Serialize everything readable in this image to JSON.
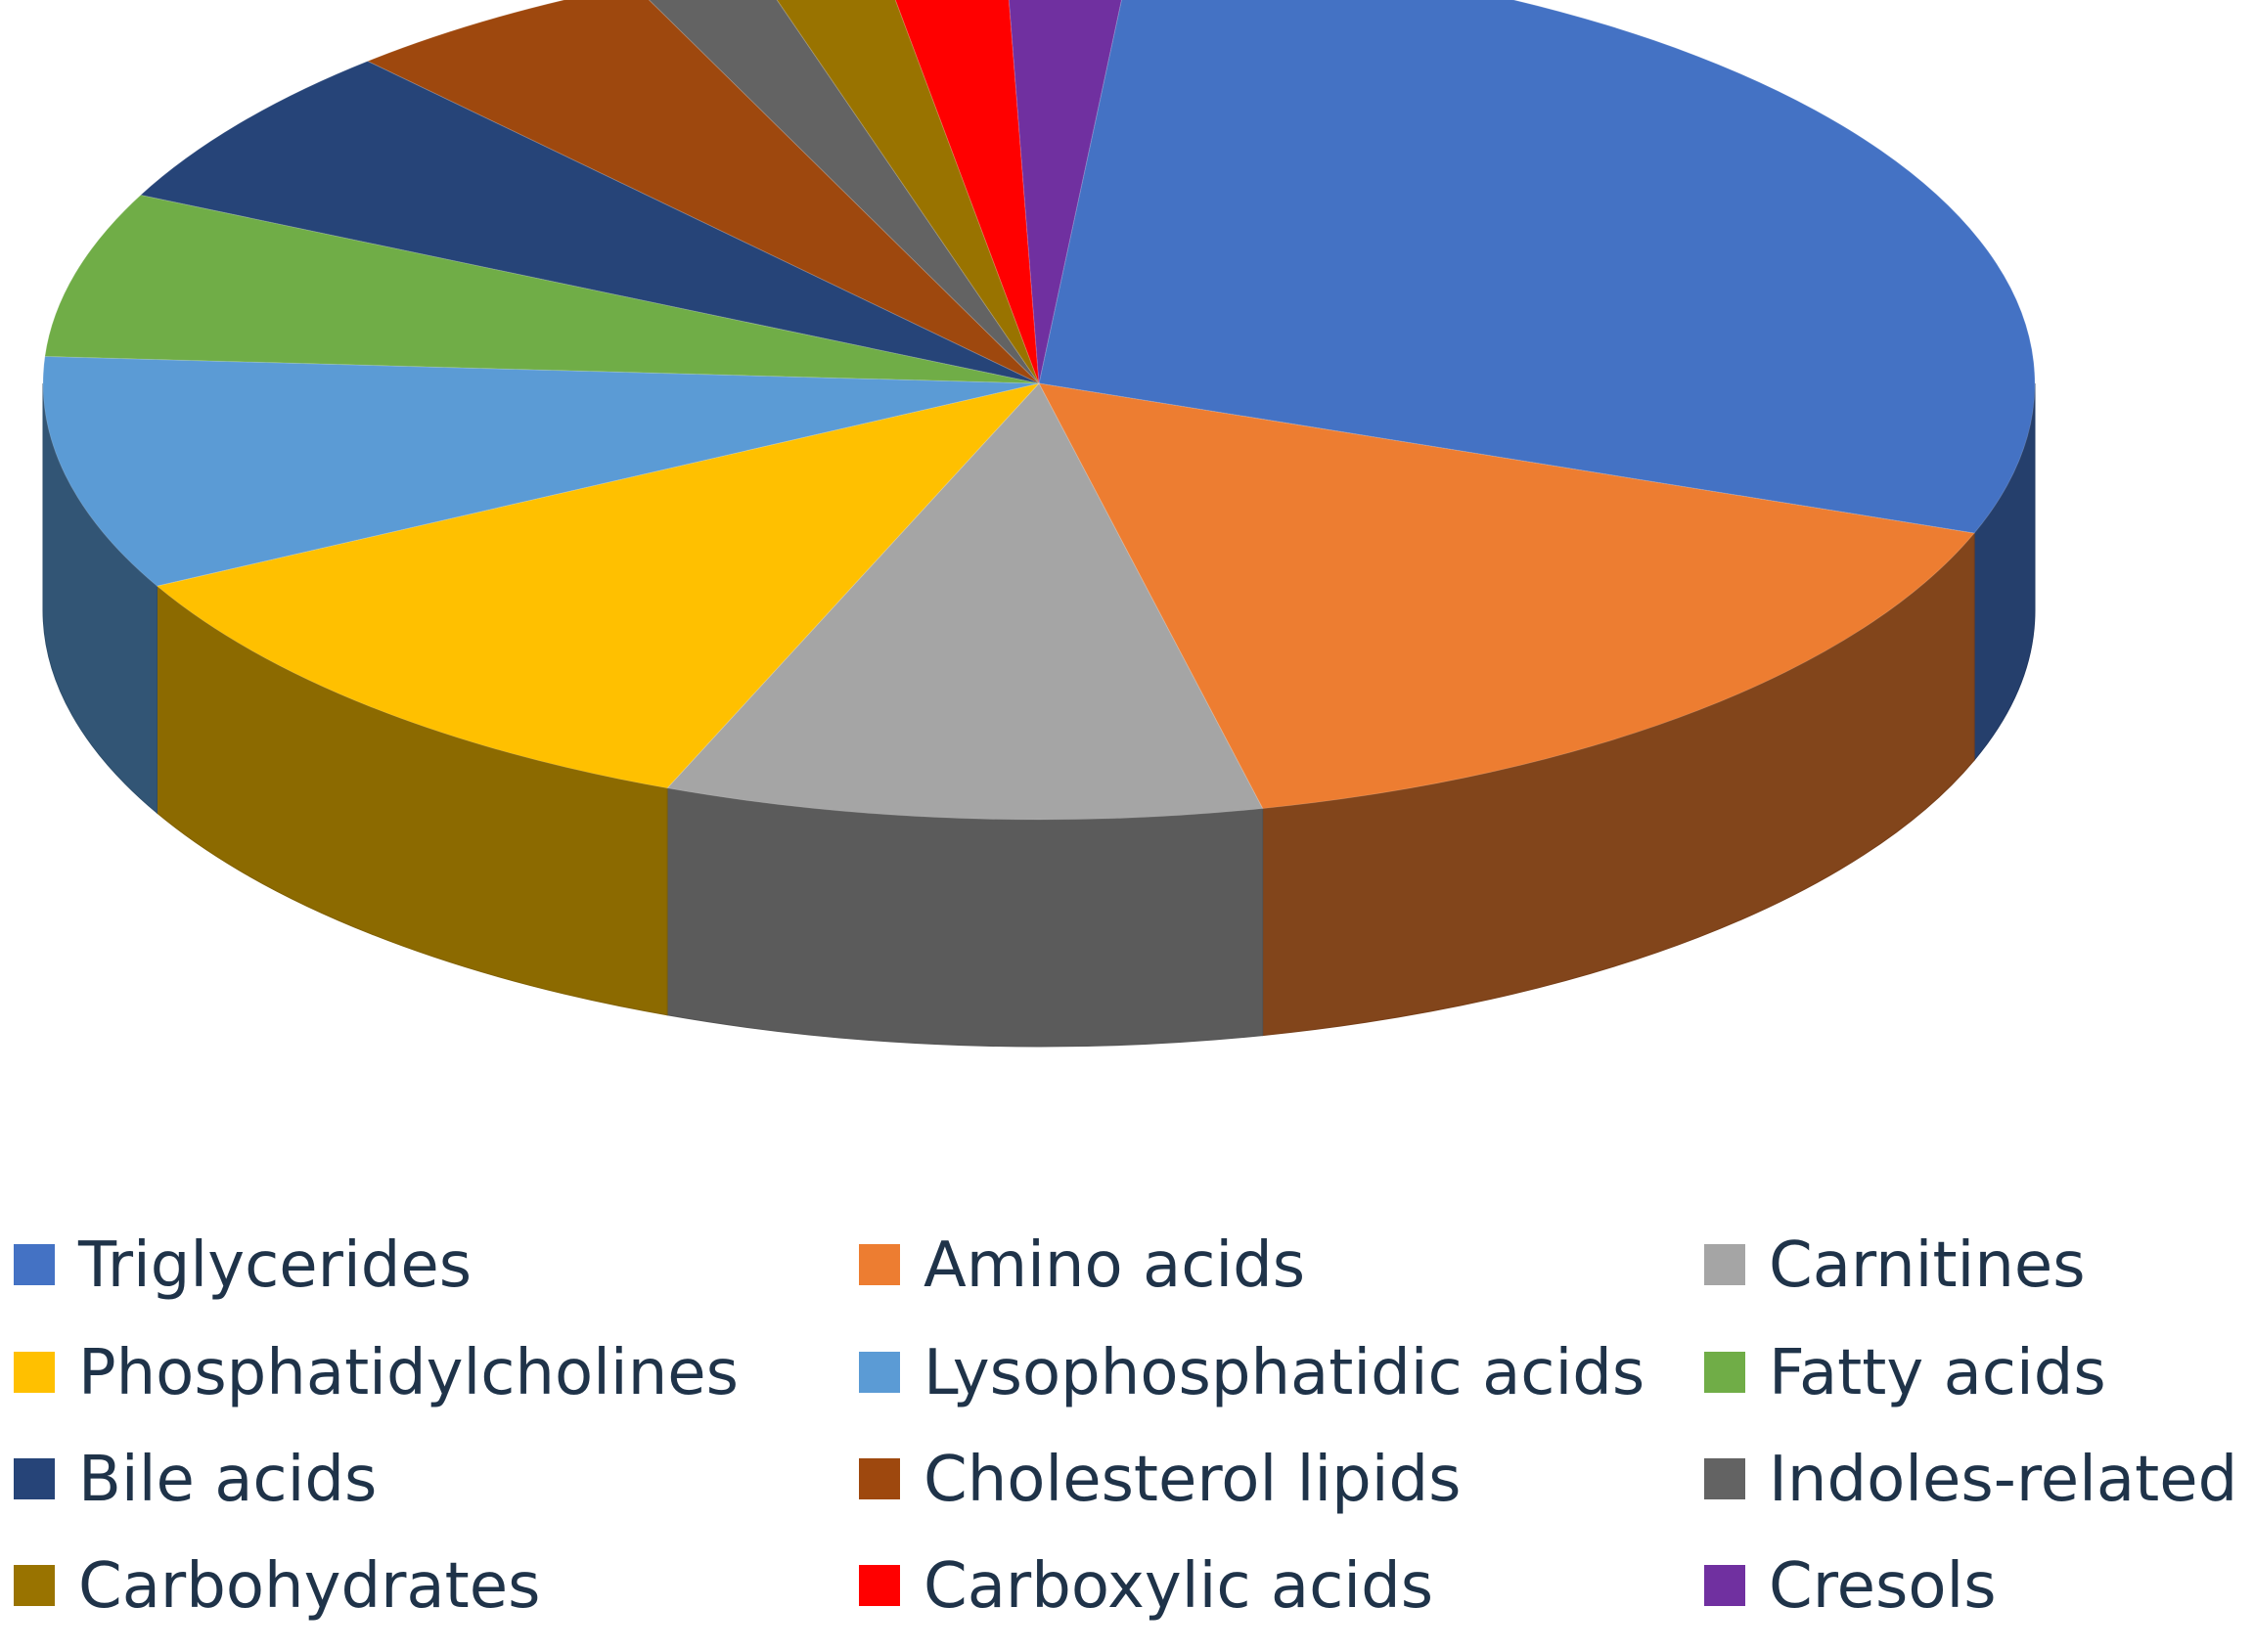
{
  "chart_data": {
    "type": "pie",
    "three_d": true,
    "legend_position": "bottom",
    "legend_columns": 3,
    "slices": [
      {
        "label": "Triglycerides",
        "value": 28.5,
        "color": "#4472c4"
      },
      {
        "label": "Amino acids",
        "value": 15.5,
        "color": "#ed7d31"
      },
      {
        "label": "Carnitines",
        "value": 9.5,
        "color": "#a5a5a5"
      },
      {
        "label": "Phosphatidylcholines",
        "value": 11.0,
        "color": "#ffc000"
      },
      {
        "label": "Lysophosphatidic acids",
        "value": 8.5,
        "color": "#5b9bd5"
      },
      {
        "label": "Fatty acids",
        "value": 6.0,
        "color": "#70ad47"
      },
      {
        "label": "Bile acids",
        "value": 6.0,
        "color": "#264478"
      },
      {
        "label": "Cholesterol lipids",
        "value": 5.0,
        "color": "#9e480e"
      },
      {
        "label": "Indoles-related",
        "value": 2.0,
        "color": "#636363"
      },
      {
        "label": "Carbohydrates",
        "value": 2.0,
        "color": "#997300"
      },
      {
        "label": "Carboxylic acids",
        "value": 2.0,
        "color": "#ff0000"
      },
      {
        "label": "Cresols",
        "value": 2.0,
        "color": "#7030a0"
      }
    ]
  }
}
